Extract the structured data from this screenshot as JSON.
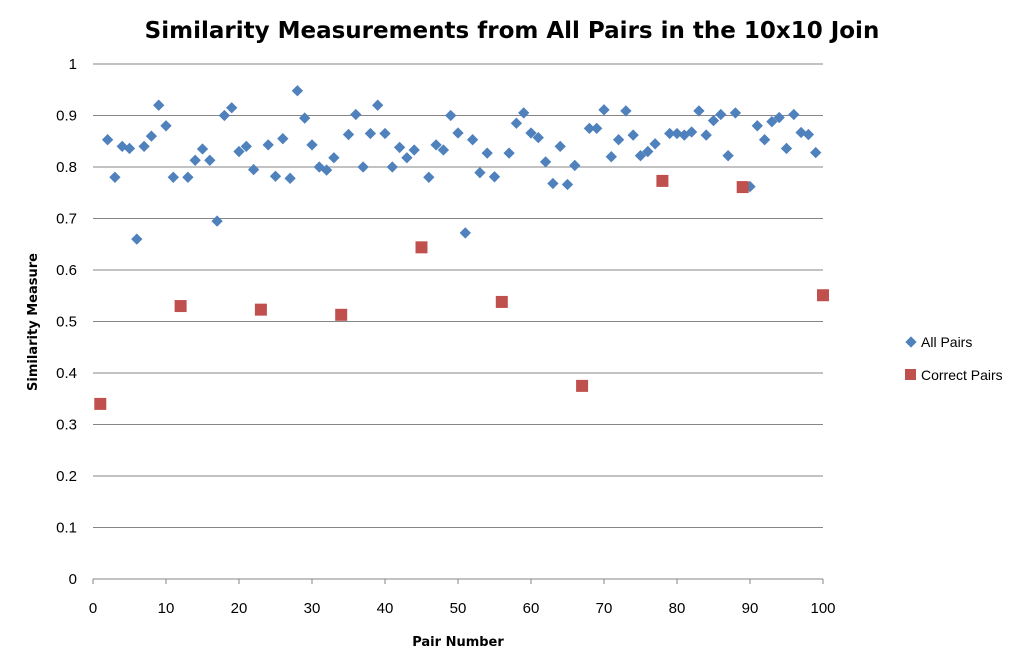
{
  "chart_data": {
    "type": "scatter",
    "title": "Similarity Measurements from All Pairs in the 10x10 Join",
    "xlabel": "Pair Number",
    "ylabel": "Similarity Measure",
    "xlim": [
      0,
      100
    ],
    "ylim": [
      0,
      1
    ],
    "x_ticks": [
      "0",
      "10",
      "20",
      "30",
      "40",
      "50",
      "60",
      "70",
      "80",
      "90",
      "100"
    ],
    "y_ticks": [
      "0",
      "0.1",
      "0.2",
      "0.3",
      "0.4",
      "0.5",
      "0.6",
      "0.7",
      "0.8",
      "0.9",
      "1"
    ],
    "grid": "horizontal major gridlines",
    "legend": "right",
    "series": [
      {
        "name": "All Pairs",
        "marker": "diamond",
        "color": "#4F81BD",
        "points": [
          [
            2,
            0.853
          ],
          [
            3,
            0.78
          ],
          [
            4,
            0.84
          ],
          [
            5,
            0.836
          ],
          [
            6,
            0.66
          ],
          [
            7,
            0.84
          ],
          [
            8,
            0.86
          ],
          [
            9,
            0.92
          ],
          [
            10,
            0.88
          ],
          [
            11,
            0.78
          ],
          [
            13,
            0.78
          ],
          [
            14,
            0.813
          ],
          [
            15,
            0.835
          ],
          [
            16,
            0.813
          ],
          [
            17,
            0.695
          ],
          [
            18,
            0.9
          ],
          [
            19,
            0.915
          ],
          [
            20,
            0.83
          ],
          [
            21,
            0.84
          ],
          [
            22,
            0.795
          ],
          [
            24,
            0.843
          ],
          [
            25,
            0.782
          ],
          [
            26,
            0.855
          ],
          [
            27,
            0.778
          ],
          [
            28,
            0.948
          ],
          [
            29,
            0.895
          ],
          [
            30,
            0.843
          ],
          [
            31,
            0.8
          ],
          [
            32,
            0.794
          ],
          [
            33,
            0.818
          ],
          [
            35,
            0.863
          ],
          [
            36,
            0.902
          ],
          [
            37,
            0.8
          ],
          [
            38,
            0.865
          ],
          [
            39,
            0.92
          ],
          [
            40,
            0.865
          ],
          [
            41,
            0.8
          ],
          [
            42,
            0.838
          ],
          [
            43,
            0.818
          ],
          [
            44,
            0.833
          ],
          [
            46,
            0.78
          ],
          [
            47,
            0.843
          ],
          [
            48,
            0.833
          ],
          [
            49,
            0.9
          ],
          [
            50,
            0.866
          ],
          [
            51,
            0.672
          ],
          [
            52,
            0.853
          ],
          [
            53,
            0.789
          ],
          [
            54,
            0.827
          ],
          [
            55,
            0.781
          ],
          [
            57,
            0.827
          ],
          [
            58,
            0.885
          ],
          [
            59,
            0.905
          ],
          [
            60,
            0.866
          ],
          [
            61,
            0.857
          ],
          [
            62,
            0.81
          ],
          [
            63,
            0.768
          ],
          [
            64,
            0.84
          ],
          [
            65,
            0.766
          ],
          [
            66,
            0.803
          ],
          [
            68,
            0.875
          ],
          [
            69,
            0.875
          ],
          [
            70,
            0.911
          ],
          [
            71,
            0.82
          ],
          [
            72,
            0.853
          ],
          [
            73,
            0.909
          ],
          [
            74,
            0.862
          ],
          [
            75,
            0.822
          ],
          [
            76,
            0.83
          ],
          [
            77,
            0.845
          ],
          [
            79,
            0.865
          ],
          [
            80,
            0.865
          ],
          [
            81,
            0.862
          ],
          [
            82,
            0.868
          ],
          [
            83,
            0.909
          ],
          [
            84,
            0.862
          ],
          [
            85,
            0.89
          ],
          [
            86,
            0.902
          ],
          [
            87,
            0.822
          ],
          [
            88,
            0.905
          ],
          [
            90,
            0.762
          ],
          [
            91,
            0.88
          ],
          [
            92,
            0.853
          ],
          [
            93,
            0.888
          ],
          [
            94,
            0.896
          ],
          [
            95,
            0.836
          ],
          [
            96,
            0.902
          ],
          [
            97,
            0.867
          ],
          [
            98,
            0.863
          ],
          [
            99,
            0.828
          ]
        ]
      },
      {
        "name": "Correct Pairs",
        "marker": "square",
        "color": "#C0504D",
        "points": [
          [
            1,
            0.34
          ],
          [
            12,
            0.53
          ],
          [
            23,
            0.523
          ],
          [
            34,
            0.513
          ],
          [
            45,
            0.644
          ],
          [
            56,
            0.538
          ],
          [
            67,
            0.375
          ],
          [
            78,
            0.773
          ],
          [
            89,
            0.761
          ],
          [
            100,
            0.551
          ]
        ]
      }
    ]
  }
}
